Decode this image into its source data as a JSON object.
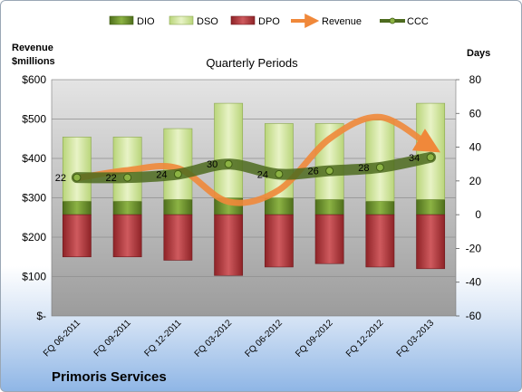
{
  "company_name": "Primoris Services",
  "colors": {
    "dio": "#6a8e2a",
    "dso": "#d2e6a0",
    "dpo": "#b83a3f",
    "revenue": "#f0883a",
    "ccc": "#4d6b1f",
    "plot_bg_top": "#e4e4e4",
    "plot_bg_bottom": "#9c9c9c"
  },
  "chart_data": {
    "type": "bar",
    "title": "Quarterly Periods",
    "left_axis_label": "Revenue\n$millions",
    "right_axis_label": "Days",
    "left_ylim": [
      0,
      600
    ],
    "left_ticks": [
      "$-",
      "$100",
      "$200",
      "$300",
      "$400",
      "$500",
      "$600"
    ],
    "right_ylim": [
      -60,
      80
    ],
    "right_ticks": [
      "-60",
      "-40",
      "-20",
      "0",
      "20",
      "40",
      "60",
      "80"
    ],
    "categories": [
      "FQ 06-2011",
      "FQ 09-2011",
      "FQ 12-2011",
      "FQ 03-2012",
      "FQ 06-2012",
      "FQ 09-2012",
      "FQ 12-2012",
      "FQ 03-2013"
    ],
    "legend": [
      "DIO",
      "DSO",
      "DPO",
      "Revenue",
      "CCC"
    ],
    "series": [
      {
        "name": "DIO",
        "axis": "right",
        "values": [
          8,
          8,
          9,
          10,
          10,
          9,
          8,
          9
        ]
      },
      {
        "name": "DSO",
        "axis": "right",
        "values": [
          38,
          38,
          42,
          56,
          44,
          45,
          48,
          57
        ]
      },
      {
        "name": "DPO",
        "axis": "right",
        "values": [
          -25,
          -25,
          -27,
          -36,
          -31,
          -29,
          -31,
          -32
        ]
      },
      {
        "name": "Revenue",
        "axis": "left",
        "type": "line",
        "values": [
          350,
          370,
          375,
          290,
          320,
          450,
          505,
          430
        ]
      },
      {
        "name": "CCC",
        "axis": "right",
        "type": "line",
        "values": [
          22,
          22,
          24,
          30,
          24,
          26,
          28,
          34
        ]
      }
    ],
    "ccc_labels": [
      "22",
      "22",
      "24",
      "30",
      "24",
      "26",
      "28",
      "34"
    ]
  }
}
